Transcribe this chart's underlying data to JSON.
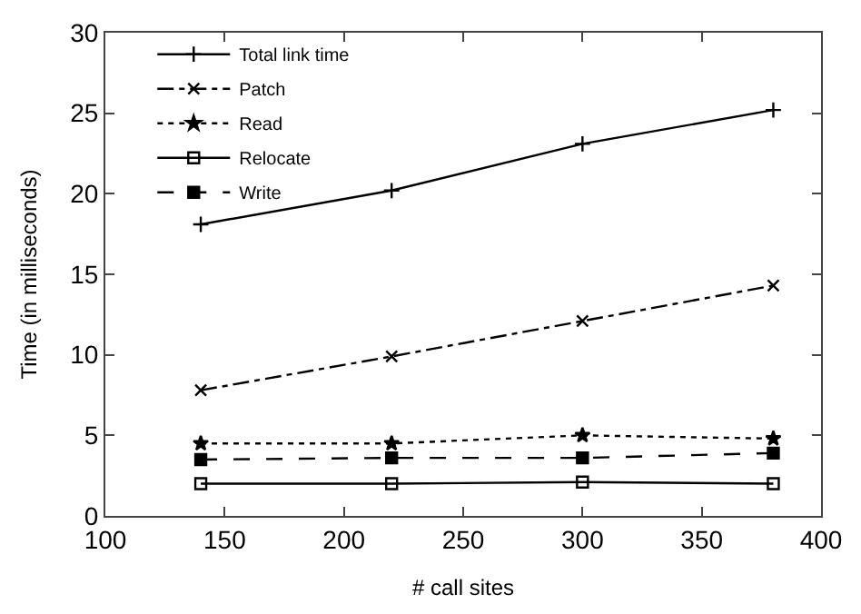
{
  "chart_data": {
    "type": "line",
    "xlabel": "# call sites",
    "ylabel": "Time (in milliseconds)",
    "x": [
      140,
      220,
      300,
      380
    ],
    "series": [
      {
        "name": "Total link time",
        "color": "#000000",
        "marker": "cross",
        "line_style": "solid",
        "values": [
          18.1,
          20.2,
          23.1,
          25.2
        ]
      },
      {
        "name": "Patch",
        "color": "#000000",
        "marker": "x",
        "line_style": "dashdot",
        "values": [
          7.8,
          9.9,
          12.1,
          14.3
        ]
      },
      {
        "name": "Read",
        "color": "#000000",
        "marker": "star",
        "line_style": "dotted",
        "values": [
          4.5,
          4.5,
          5.0,
          4.8
        ]
      },
      {
        "name": "Relocate",
        "color": "#000000",
        "marker": "square-open",
        "line_style": "solid",
        "values": [
          2.0,
          2.0,
          2.1,
          2.0
        ]
      },
      {
        "name": "Write",
        "color": "#000000",
        "marker": "square",
        "line_style": "dashed",
        "values": [
          3.5,
          3.6,
          3.6,
          3.9
        ]
      }
    ],
    "xlim": [
      100,
      400
    ],
    "xticks": [
      100,
      150,
      200,
      250,
      300,
      350,
      400
    ],
    "ylim": [
      0,
      30
    ],
    "yticks": [
      0,
      5,
      10,
      15,
      20,
      25,
      30
    ],
    "legend": "top left"
  }
}
